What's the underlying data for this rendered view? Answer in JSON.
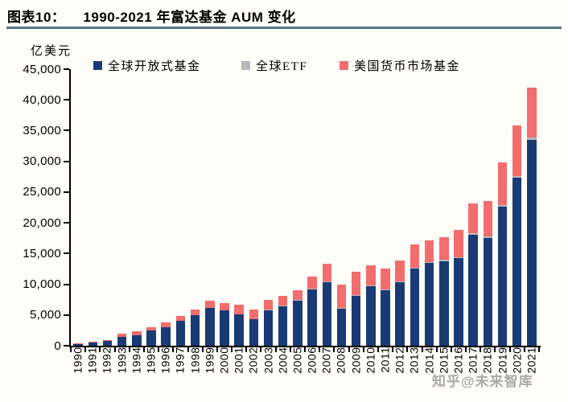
{
  "header": {
    "tag": "图表10：",
    "title": "1990-2021 年富达基金 AUM 变化"
  },
  "watermark": "知乎@未来智库",
  "colors": {
    "background": "#fffdf7",
    "title_rule": "#567685",
    "axis": "#000000",
    "watermark_color": "#8d8d8d",
    "open_end_fund_blue": "#1a3a75",
    "etf_gray": "#b8b8bc",
    "money_market_red": "#f26d6d"
  },
  "chart_data": {
    "type": "bar",
    "stacked": true,
    "title": "1990-2021 年富达基金 AUM 变化",
    "unit_label": "亿美元",
    "xlabel": "",
    "ylabel": "亿美元",
    "ylim": [
      0,
      45000
    ],
    "ytick_step": 5000,
    "ytick_labels": [
      "0",
      "5,000",
      "10,000",
      "15,000",
      "20,000",
      "25,000",
      "30,000",
      "35,000",
      "40,000",
      "45,000"
    ],
    "grid": false,
    "legend_position": "top",
    "categories": [
      "1990",
      "1991",
      "1992",
      "1993",
      "1994",
      "1995",
      "1996",
      "1997",
      "1998",
      "1999",
      "2000",
      "2001",
      "2002",
      "2003",
      "2004",
      "2005",
      "2006",
      "2007",
      "2008",
      "2009",
      "2010",
      "2011",
      "2012",
      "2013",
      "2014",
      "2015",
      "2016",
      "2017",
      "2018",
      "2019",
      "2020",
      "2021"
    ],
    "series": [
      {
        "name": "全球开放式基金",
        "color": "#1a3a75",
        "values": [
          350,
          500,
          750,
          1450,
          1750,
          2450,
          2950,
          4050,
          5000,
          6200,
          5700,
          5150,
          4350,
          5800,
          6500,
          7350,
          9150,
          10300,
          6050,
          8200,
          9750,
          9100,
          10400,
          12500,
          13500,
          13750,
          14200,
          18100,
          17500,
          22600,
          27300,
          33500
        ]
      },
      {
        "name": "全球ETF",
        "color": "#b8b8bc",
        "values": [
          0,
          0,
          0,
          0,
          0,
          0,
          0,
          0,
          0,
          0,
          0,
          0,
          0,
          50,
          50,
          80,
          100,
          100,
          100,
          100,
          100,
          100,
          100,
          150,
          150,
          200,
          200,
          250,
          250,
          300,
          350,
          400
        ]
      },
      {
        "name": "美国货币市场基金",
        "color": "#f26d6d",
        "values": [
          100,
          130,
          150,
          500,
          550,
          600,
          850,
          800,
          950,
          1100,
          1250,
          1500,
          1600,
          1550,
          1500,
          1570,
          2050,
          3000,
          3800,
          3700,
          3200,
          3350,
          3350,
          3850,
          3450,
          3650,
          4400,
          4850,
          5850,
          6900,
          8150,
          8100
        ]
      }
    ]
  }
}
